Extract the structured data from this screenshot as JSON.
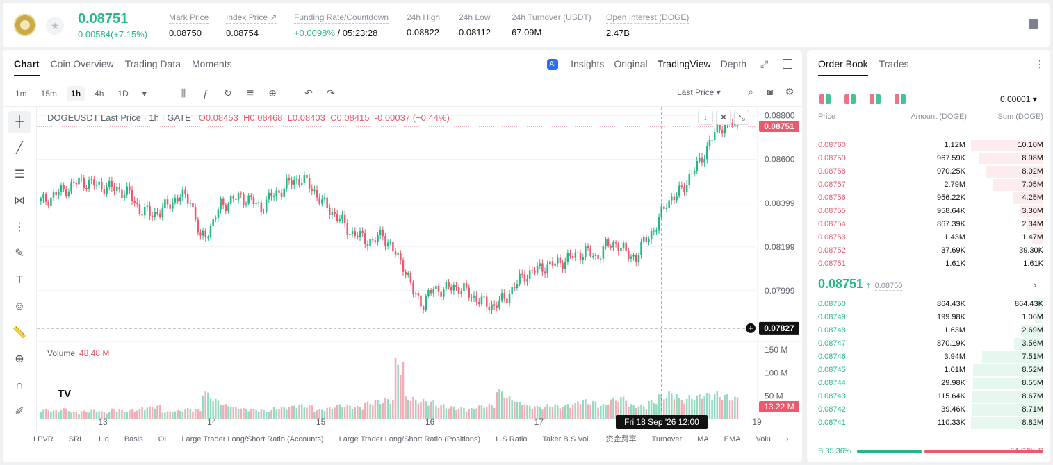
{
  "ticker": {
    "last": "0.08751",
    "change": "0.00584(+7.15%)",
    "stats": [
      {
        "label": "Mark Price",
        "value": "0.08750"
      },
      {
        "label": "Index Price ↗",
        "value": "0.08754"
      },
      {
        "label": "Funding Rate/Countdown",
        "value_green": "+0.0098%",
        "value": " / 05:23:28"
      },
      {
        "label": "24h High",
        "value": "0.08822"
      },
      {
        "label": "24h Low",
        "value": "0.08112"
      },
      {
        "label": "24h Turnover (USDT)",
        "value": "67.09M"
      },
      {
        "label": "Open Interest (DOGE)",
        "value": "2.47B"
      }
    ]
  },
  "chart_tabs": [
    "Chart",
    "Coin Overview",
    "Trading Data",
    "Moments"
  ],
  "chart_views": {
    "insights": "Insights",
    "original": "Original",
    "tradingview": "TradingView",
    "depth": "Depth"
  },
  "timeframes": [
    "1m",
    "15m",
    "1h",
    "4h",
    "1D"
  ],
  "last_price_select": "Last Price ▾",
  "ohlc": {
    "symbol": "DOGEUSDT Last Price · 1h · GATE",
    "o": "O0.08453",
    "h": "H0.08468",
    "l": "L0.08403",
    "c": "C0.08415",
    "chg": "-0.00037 (−0.44%)"
  },
  "volume": {
    "label": "Volume",
    "value": "48.48 M"
  },
  "crosshair": {
    "time_label": "Fri 18 Sep '26   12:00",
    "price_label": "0.07827"
  },
  "bottom_indicators": [
    "LPVR",
    "SRL",
    "Liq",
    "Basis",
    "OI",
    "Large Trader Long/Short Ratio (Accounts)",
    "Large Trader Long/Short Ratio (Positions)",
    "L.S Ratio",
    "Taker B.S Vol.",
    "资金费率",
    "Turnover",
    "MA",
    "EMA",
    "Volu"
  ],
  "chart_data": {
    "type": "candlestick",
    "symbol": "DOGEUSDT",
    "interval": "1h",
    "y_axis_ticks": [
      "0.08800",
      "0.08600",
      "0.08399",
      "0.08199",
      "0.07999"
    ],
    "x_axis_ticks": [
      "13",
      "14",
      "15",
      "16",
      "17",
      "18",
      "19"
    ],
    "volume_axis_ticks": [
      "150 M",
      "100 M",
      "50 M"
    ],
    "last_price_label": "0.08751",
    "last_volume_label": "13.22 M",
    "ylim": [
      0.0776,
      0.0884
    ],
    "close_path": [
      0.084,
      0.0842,
      0.0845,
      0.0847,
      0.085,
      0.0849,
      0.0848,
      0.0847,
      0.0846,
      0.0844,
      0.0837,
      0.0835,
      0.0836,
      0.084,
      0.0843,
      0.0842,
      0.0823,
      0.0829,
      0.0839,
      0.0841,
      0.0843,
      0.0841,
      0.0838,
      0.0843,
      0.0846,
      0.085,
      0.0851,
      0.0847,
      0.084,
      0.0836,
      0.0831,
      0.0826,
      0.0824,
      0.0822,
      0.0826,
      0.0818,
      0.0812,
      0.0799,
      0.0794,
      0.0801,
      0.08,
      0.0802,
      0.08,
      0.0797,
      0.0794,
      0.0793,
      0.0796,
      0.0802,
      0.0807,
      0.0809,
      0.0811,
      0.0812,
      0.0814,
      0.0816,
      0.0818,
      0.0815,
      0.082,
      0.0822,
      0.0817,
      0.0815,
      0.0824,
      0.0829,
      0.0841,
      0.0843,
      0.085,
      0.0857,
      0.0865,
      0.0874,
      0.0877,
      0.0875
    ],
    "volume_path": [
      20,
      18,
      22,
      15,
      17,
      19,
      16,
      21,
      18,
      20,
      25,
      28,
      16,
      18,
      22,
      20,
      55,
      40,
      30,
      25,
      22,
      20,
      18,
      24,
      26,
      30,
      28,
      20,
      24,
      30,
      28,
      26,
      35,
      38,
      42,
      120,
      45,
      40,
      38,
      30,
      26,
      24,
      22,
      28,
      30,
      60,
      45,
      35,
      28,
      26,
      30,
      28,
      32,
      40,
      36,
      30,
      42,
      45,
      30,
      28,
      38,
      50,
      55,
      42,
      48,
      52,
      55,
      50,
      45,
      13
    ]
  },
  "orderbook": {
    "tabs": [
      "Order Book",
      "Trades"
    ],
    "precision": "0.00001 ▾",
    "headers": {
      "price": "Price",
      "amount": "Amount (DOGE)",
      "sum": "Sum (DOGE)"
    },
    "asks": [
      {
        "price": "0.08760",
        "amount": "1.12M",
        "sum": "10.10M",
        "depth": 1.0
      },
      {
        "price": "0.08759",
        "amount": "967.59K",
        "sum": "8.98M",
        "depth": 0.89
      },
      {
        "price": "0.08758",
        "amount": "970.25K",
        "sum": "8.02M",
        "depth": 0.79
      },
      {
        "price": "0.08757",
        "amount": "2.79M",
        "sum": "7.05M",
        "depth": 0.7
      },
      {
        "price": "0.08756",
        "amount": "956.22K",
        "sum": "4.25M",
        "depth": 0.42
      },
      {
        "price": "0.08755",
        "amount": "958.64K",
        "sum": "3.30M",
        "depth": 0.33
      },
      {
        "price": "0.08754",
        "amount": "867.39K",
        "sum": "2.34M",
        "depth": 0.23
      },
      {
        "price": "0.08753",
        "amount": "1.43M",
        "sum": "1.47M",
        "depth": 0.15
      },
      {
        "price": "0.08752",
        "amount": "37.69K",
        "sum": "39.30K",
        "depth": 0.01
      },
      {
        "price": "0.08751",
        "amount": "1.61K",
        "sum": "1.61K",
        "depth": 0.0
      }
    ],
    "mid_price": "0.08751",
    "mid_arrow": "↑",
    "mark_ref": "0.08750",
    "bids": [
      {
        "price": "0.08750",
        "amount": "864.43K",
        "sum": "864.43K",
        "depth": 0.1
      },
      {
        "price": "0.08749",
        "amount": "199.98K",
        "sum": "1.06M",
        "depth": 0.12
      },
      {
        "price": "0.08748",
        "amount": "1.63M",
        "sum": "2.69M",
        "depth": 0.31
      },
      {
        "price": "0.08747",
        "amount": "870.19K",
        "sum": "3.56M",
        "depth": 0.4
      },
      {
        "price": "0.08746",
        "amount": "3.94M",
        "sum": "7.51M",
        "depth": 0.85
      },
      {
        "price": "0.08745",
        "amount": "1.01M",
        "sum": "8.52M",
        "depth": 0.97
      },
      {
        "price": "0.08744",
        "amount": "29.98K",
        "sum": "8.55M",
        "depth": 0.97
      },
      {
        "price": "0.08743",
        "amount": "115.64K",
        "sum": "8.67M",
        "depth": 0.98
      },
      {
        "price": "0.08742",
        "amount": "39.46K",
        "sum": "8.71M",
        "depth": 0.99
      },
      {
        "price": "0.08741",
        "amount": "110.33K",
        "sum": "8.82M",
        "depth": 1.0
      }
    ],
    "buy_label": "B 35.36%",
    "sell_label": "64.64% S",
    "buy_ratio": 0.3536
  },
  "colors": {
    "up": "#23b884",
    "down": "#e95a6d",
    "up_bg": "#e6f7ef",
    "down_bg": "#fdecee"
  }
}
